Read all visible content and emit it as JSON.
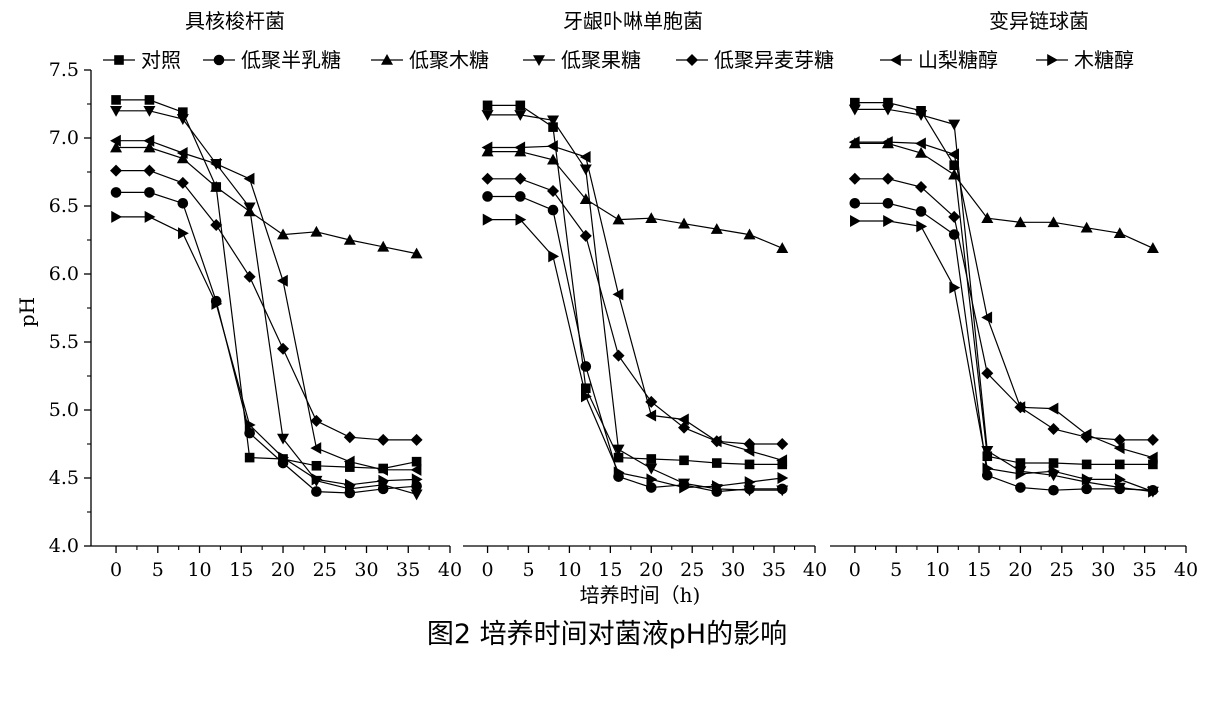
{
  "figure": {
    "caption": "图2 培养时间对菌液pH的影响"
  },
  "chart_data": {
    "type": "line",
    "xlabel": "培养时间（h)",
    "ylabel": "pH",
    "ylim": [
      4.0,
      7.5
    ],
    "xlim": [
      -3,
      40
    ],
    "x_ticks": [
      "0",
      "5",
      "10",
      "15",
      "20",
      "25",
      "30",
      "35",
      "40"
    ],
    "y_ticks": [
      "4.0",
      "4.5",
      "5.0",
      "5.5",
      "6.0",
      "6.5",
      "7.0",
      "7.5"
    ],
    "legend_position": "top",
    "series_names": [
      "对照",
      "低聚半乳糖",
      "低聚木糖",
      "低聚果糖",
      "低聚异麦芽糖",
      "山梨糖醇",
      "木糖醇"
    ],
    "series_markers": [
      "square",
      "circle",
      "triangle-up",
      "triangle-down",
      "diamond",
      "triangle-left",
      "triangle-right"
    ],
    "x": [
      0,
      4,
      8,
      12,
      16,
      20,
      24,
      28,
      32,
      36
    ],
    "panels": [
      {
        "title": "具核梭杆菌",
        "series": [
          {
            "name": "对照",
            "values": [
              7.28,
              7.28,
              7.19,
              6.64,
              4.65,
              4.64,
              4.59,
              4.58,
              4.57,
              4.62
            ]
          },
          {
            "name": "低聚半乳糖",
            "values": [
              6.6,
              6.6,
              6.52,
              5.8,
              4.83,
              4.61,
              4.4,
              4.39,
              4.42,
              4.44
            ]
          },
          {
            "name": "低聚木糖",
            "values": [
              6.93,
              6.93,
              6.85,
              6.64,
              6.46,
              6.29,
              6.31,
              6.25,
              6.2,
              6.15
            ]
          },
          {
            "name": "低聚果糖",
            "values": [
              7.2,
              7.2,
              7.14,
              6.81,
              6.49,
              4.79,
              4.48,
              4.42,
              4.45,
              4.38
            ]
          },
          {
            "name": "低聚异麦芽糖",
            "values": [
              6.76,
              6.76,
              6.67,
              6.36,
              5.98,
              5.45,
              4.92,
              4.8,
              4.78,
              4.78
            ]
          },
          {
            "name": "山梨糖醇",
            "values": [
              6.98,
              6.98,
              6.89,
              6.81,
              6.7,
              5.95,
              4.72,
              4.62,
              4.56,
              4.56
            ]
          },
          {
            "name": "木糖醇",
            "values": [
              6.42,
              6.42,
              6.3,
              5.78,
              4.89,
              4.65,
              4.49,
              4.45,
              4.48,
              4.49
            ]
          }
        ]
      },
      {
        "title": "牙龈卟啉单胞菌",
        "series": [
          {
            "name": "对照",
            "values": [
              7.24,
              7.24,
              7.08,
              5.16,
              4.65,
              4.64,
              4.63,
              4.61,
              4.6,
              4.6
            ]
          },
          {
            "name": "低聚半乳糖",
            "values": [
              6.57,
              6.57,
              6.47,
              5.32,
              4.51,
              4.43,
              4.45,
              4.4,
              4.42,
              4.42
            ]
          },
          {
            "name": "低聚木糖",
            "values": [
              6.9,
              6.9,
              6.84,
              6.55,
              6.4,
              6.41,
              6.37,
              6.33,
              6.29,
              6.19
            ]
          },
          {
            "name": "低聚果糖",
            "values": [
              7.17,
              7.17,
              7.13,
              6.77,
              4.71,
              4.57,
              4.46,
              4.42,
              4.41,
              4.41
            ]
          },
          {
            "name": "低聚异麦芽糖",
            "values": [
              6.7,
              6.7,
              6.61,
              6.28,
              5.4,
              5.06,
              4.87,
              4.77,
              4.75,
              4.75
            ]
          },
          {
            "name": "山梨糖醇",
            "values": [
              6.93,
              6.93,
              6.94,
              6.86,
              5.85,
              4.96,
              4.93,
              4.77,
              4.7,
              4.63
            ]
          },
          {
            "name": "木糖醇",
            "values": [
              6.4,
              6.4,
              6.13,
              5.1,
              4.54,
              4.49,
              4.43,
              4.44,
              4.47,
              4.5
            ]
          }
        ]
      },
      {
        "title": "变异链球菌",
        "series": [
          {
            "name": "对照",
            "values": [
              7.26,
              7.26,
              7.2,
              6.8,
              4.66,
              4.61,
              4.61,
              4.6,
              4.6,
              4.6
            ]
          },
          {
            "name": "低聚半乳糖",
            "values": [
              6.52,
              6.52,
              6.46,
              6.29,
              4.52,
              4.43,
              4.41,
              4.42,
              4.42,
              4.41
            ]
          },
          {
            "name": "低聚木糖",
            "values": [
              6.96,
              6.96,
              6.89,
              6.73,
              6.41,
              6.38,
              6.38,
              6.34,
              6.3,
              6.19
            ]
          },
          {
            "name": "低聚果糖",
            "values": [
              7.21,
              7.21,
              7.17,
              7.1,
              4.7,
              4.55,
              4.52,
              4.47,
              4.43,
              4.4
            ]
          },
          {
            "name": "低聚异麦芽糖",
            "values": [
              6.7,
              6.7,
              6.64,
              6.42,
              5.27,
              5.02,
              4.86,
              4.8,
              4.78,
              4.78
            ]
          },
          {
            "name": "山梨糖醇",
            "values": [
              6.97,
              6.97,
              6.96,
              6.88,
              5.68,
              5.02,
              5.01,
              4.82,
              4.72,
              4.65
            ]
          },
          {
            "name": "木糖醇",
            "values": [
              6.39,
              6.39,
              6.35,
              5.9,
              4.57,
              4.53,
              4.55,
              4.49,
              4.49,
              4.4
            ]
          }
        ]
      }
    ]
  }
}
